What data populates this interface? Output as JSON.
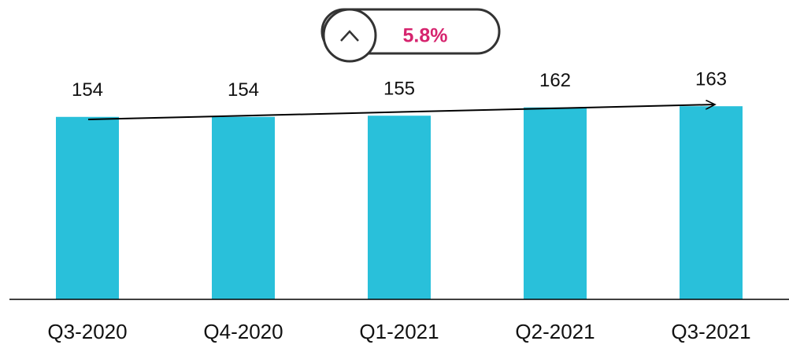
{
  "chart_data": {
    "type": "bar",
    "categories": [
      "Q3-2020",
      "Q4-2020",
      "Q1-2021",
      "Q2-2021",
      "Q3-2021"
    ],
    "values": [
      154,
      154,
      155,
      162,
      163
    ],
    "color": "#29c0da",
    "ylim": [
      0,
      250
    ],
    "annotation": "5.8%",
    "annotation_color": "#d6246e"
  }
}
